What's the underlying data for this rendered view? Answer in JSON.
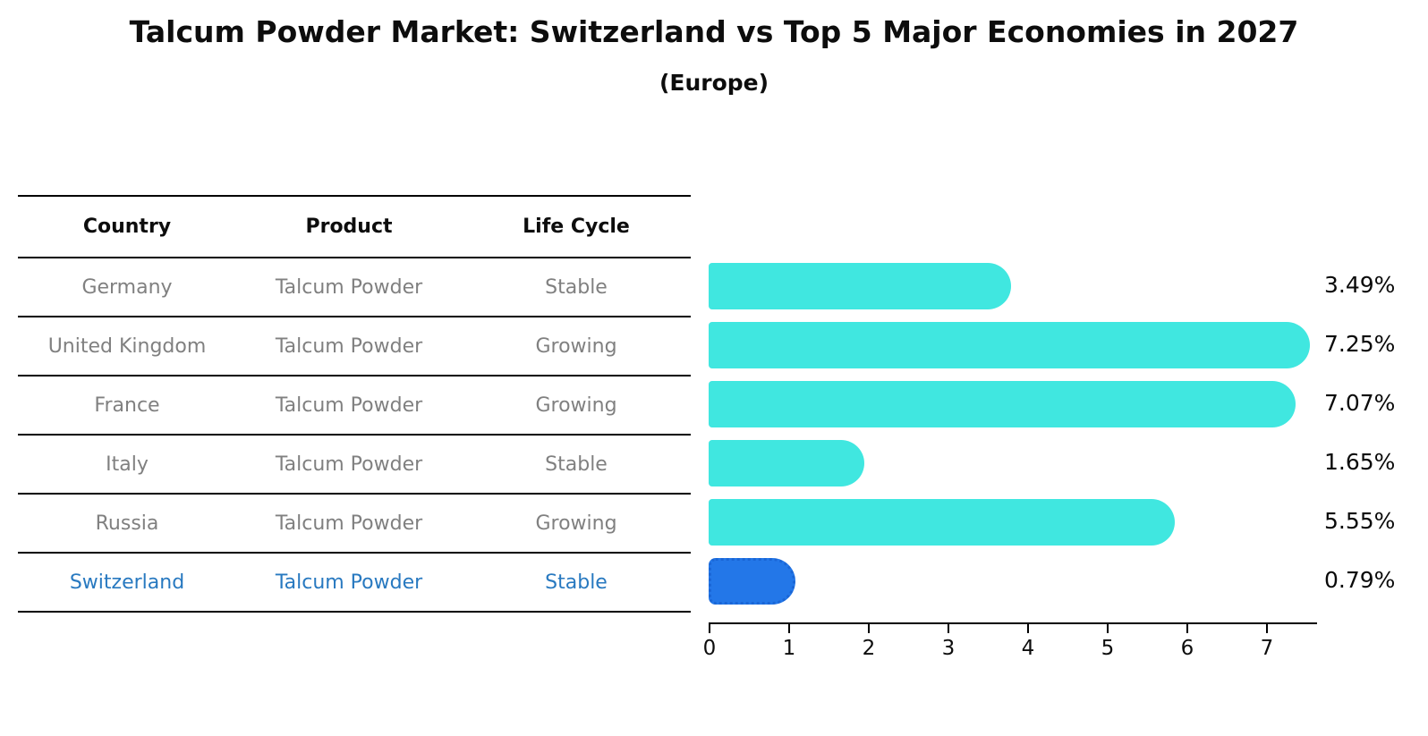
{
  "title": "Talcum Powder Market: Switzerland vs Top 5 Major Economies in 2027",
  "subtitle": "(Europe)",
  "table": {
    "headers": [
      "Country",
      "Product",
      "Life Cycle"
    ],
    "rows": [
      {
        "country": "Germany",
        "product": "Talcum Powder",
        "life_cycle": "Stable",
        "highlighted": false
      },
      {
        "country": "United Kingdom",
        "product": "Talcum Powder",
        "life_cycle": "Growing",
        "highlighted": false
      },
      {
        "country": "France",
        "product": "Talcum Powder",
        "life_cycle": "Growing",
        "highlighted": false
      },
      {
        "country": "Italy",
        "product": "Talcum Powder",
        "life_cycle": "Stable",
        "highlighted": false
      },
      {
        "country": "Russia",
        "product": "Talcum Powder",
        "life_cycle": "Growing",
        "highlighted": false
      },
      {
        "country": "Switzerland",
        "product": "Talcum Powder",
        "life_cycle": "Stable",
        "highlighted": true
      }
    ]
  },
  "chart_data": {
    "type": "bar",
    "orientation": "horizontal",
    "title": "Talcum Powder Market: Switzerland vs Top 5 Major Economies in 2027",
    "subtitle": "(Europe)",
    "categories": [
      "Germany",
      "United Kingdom",
      "France",
      "Italy",
      "Russia",
      "Switzerland"
    ],
    "values": [
      3.49,
      7.25,
      7.07,
      1.65,
      5.55,
      0.79
    ],
    "value_labels": [
      "3.49%",
      "7.25%",
      "7.07%",
      "1.65%",
      "5.55%",
      "0.79%"
    ],
    "x_ticks": [
      0,
      1,
      2,
      3,
      4,
      5,
      6,
      7
    ],
    "xlim": [
      0,
      7.6
    ],
    "grid": false,
    "legend_position": "none",
    "bar_color": "#40e7e0",
    "highlight_bar_color": "#2377e8",
    "highlight_index": 5,
    "highlight_text_color": "#2879c0"
  },
  "colors": {
    "text_muted": "#808080",
    "text_main": "#0d0d0d",
    "line": "#000000"
  }
}
